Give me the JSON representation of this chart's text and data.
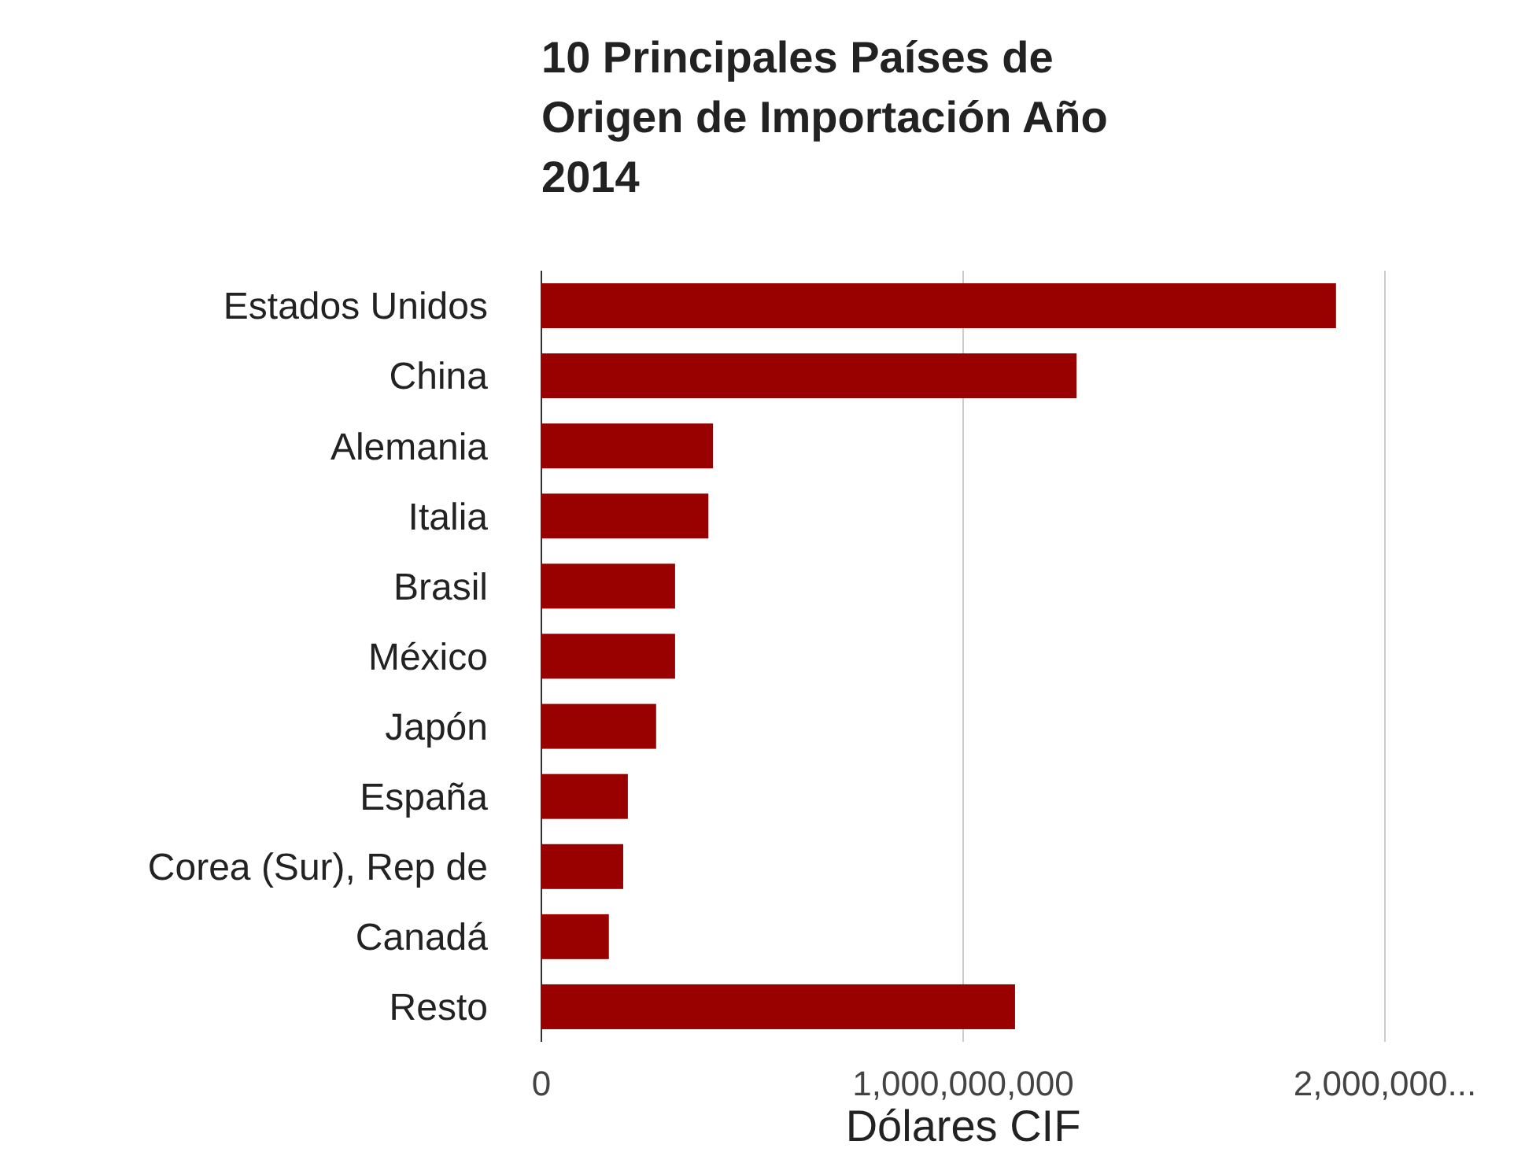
{
  "chart_data": {
    "type": "bar",
    "orientation": "horizontal",
    "title": "10 Principales Países de Origen de Importación Año 2014",
    "xlabel": "Dólares CIF",
    "categories": [
      "Estados Unidos",
      "China",
      "Alemania",
      "Italia",
      "Brasil",
      "México",
      "Japón",
      "España",
      "Corea (Sur), Rep de",
      "Canadá",
      "Resto"
    ],
    "values": [
      1884000000,
      1269000000,
      407000000,
      396000000,
      317000000,
      317000000,
      272000000,
      205000000,
      194000000,
      160000000,
      1123000000
    ],
    "color": "#990000",
    "xlim": [
      0,
      2000000000
    ],
    "xticks": [
      {
        "value": 0,
        "label": "0"
      },
      {
        "value": 1000000000,
        "label": "1,000,000,000"
      },
      {
        "value": 2000000000,
        "label": "2,000,000..."
      }
    ],
    "grid": "x"
  }
}
